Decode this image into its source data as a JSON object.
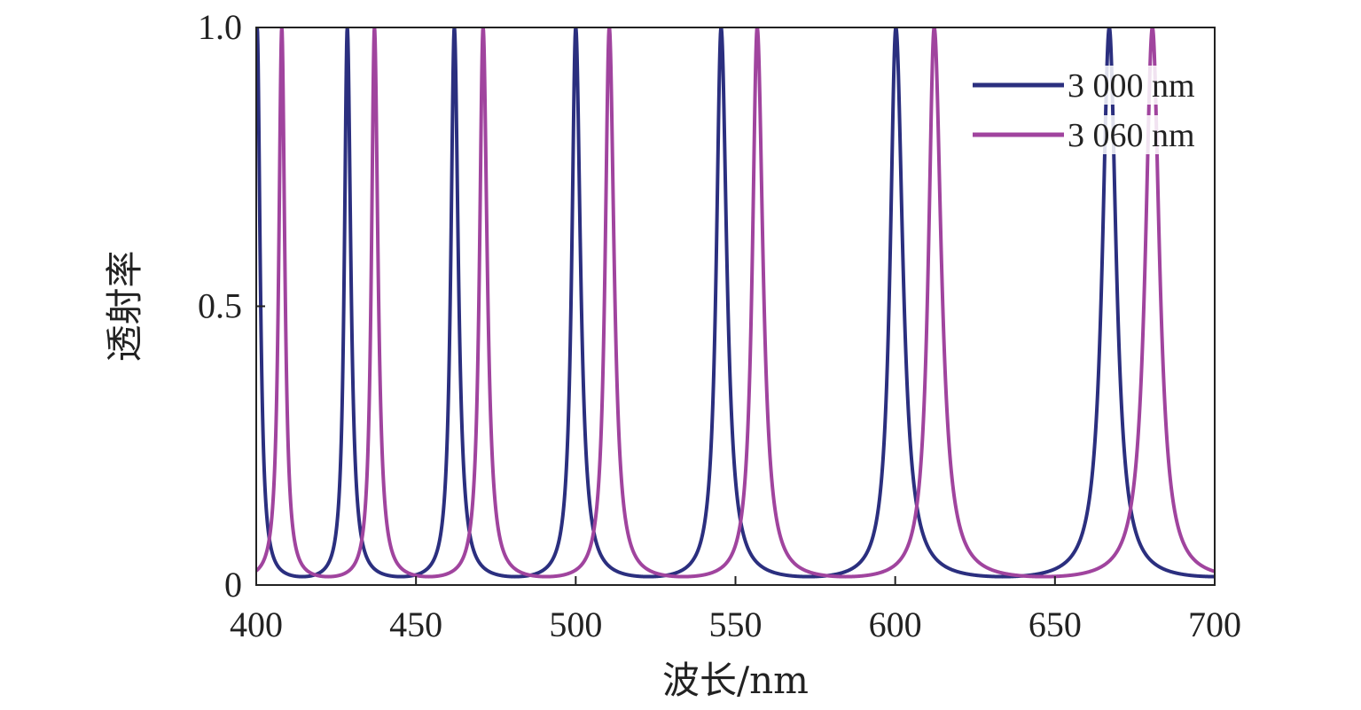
{
  "chart_data": {
    "type": "line",
    "title": "",
    "xlabel": "波长/nm",
    "ylabel": "透射率",
    "xlim": [
      400,
      700
    ],
    "ylim": [
      0,
      1.0
    ],
    "x_ticks": [
      400,
      450,
      500,
      550,
      600,
      650,
      700
    ],
    "x_tick_labels": [
      "400",
      "450",
      "500",
      "550",
      "600",
      "650",
      "700"
    ],
    "y_ticks": [
      0,
      0.5,
      1.0
    ],
    "y_tick_labels": [
      "0",
      "0.5",
      "1.0"
    ],
    "grid": false,
    "legend_position": "top-right",
    "series": [
      {
        "name": "3 000 nm",
        "color": "#2b2f7f",
        "peak_wavelengths": [
          400.3,
          428.5,
          462,
          500,
          545.5,
          600.2,
          667
        ],
        "peak_value": 1.0,
        "min_value": 0.015
      },
      {
        "name": "3 060 nm",
        "color": "#a0449e",
        "peak_wavelengths": [
          408,
          437,
          471,
          510.5,
          556.8,
          612.2,
          680.5
        ],
        "peak_value": 1.0,
        "min_value": 0.015
      }
    ]
  }
}
